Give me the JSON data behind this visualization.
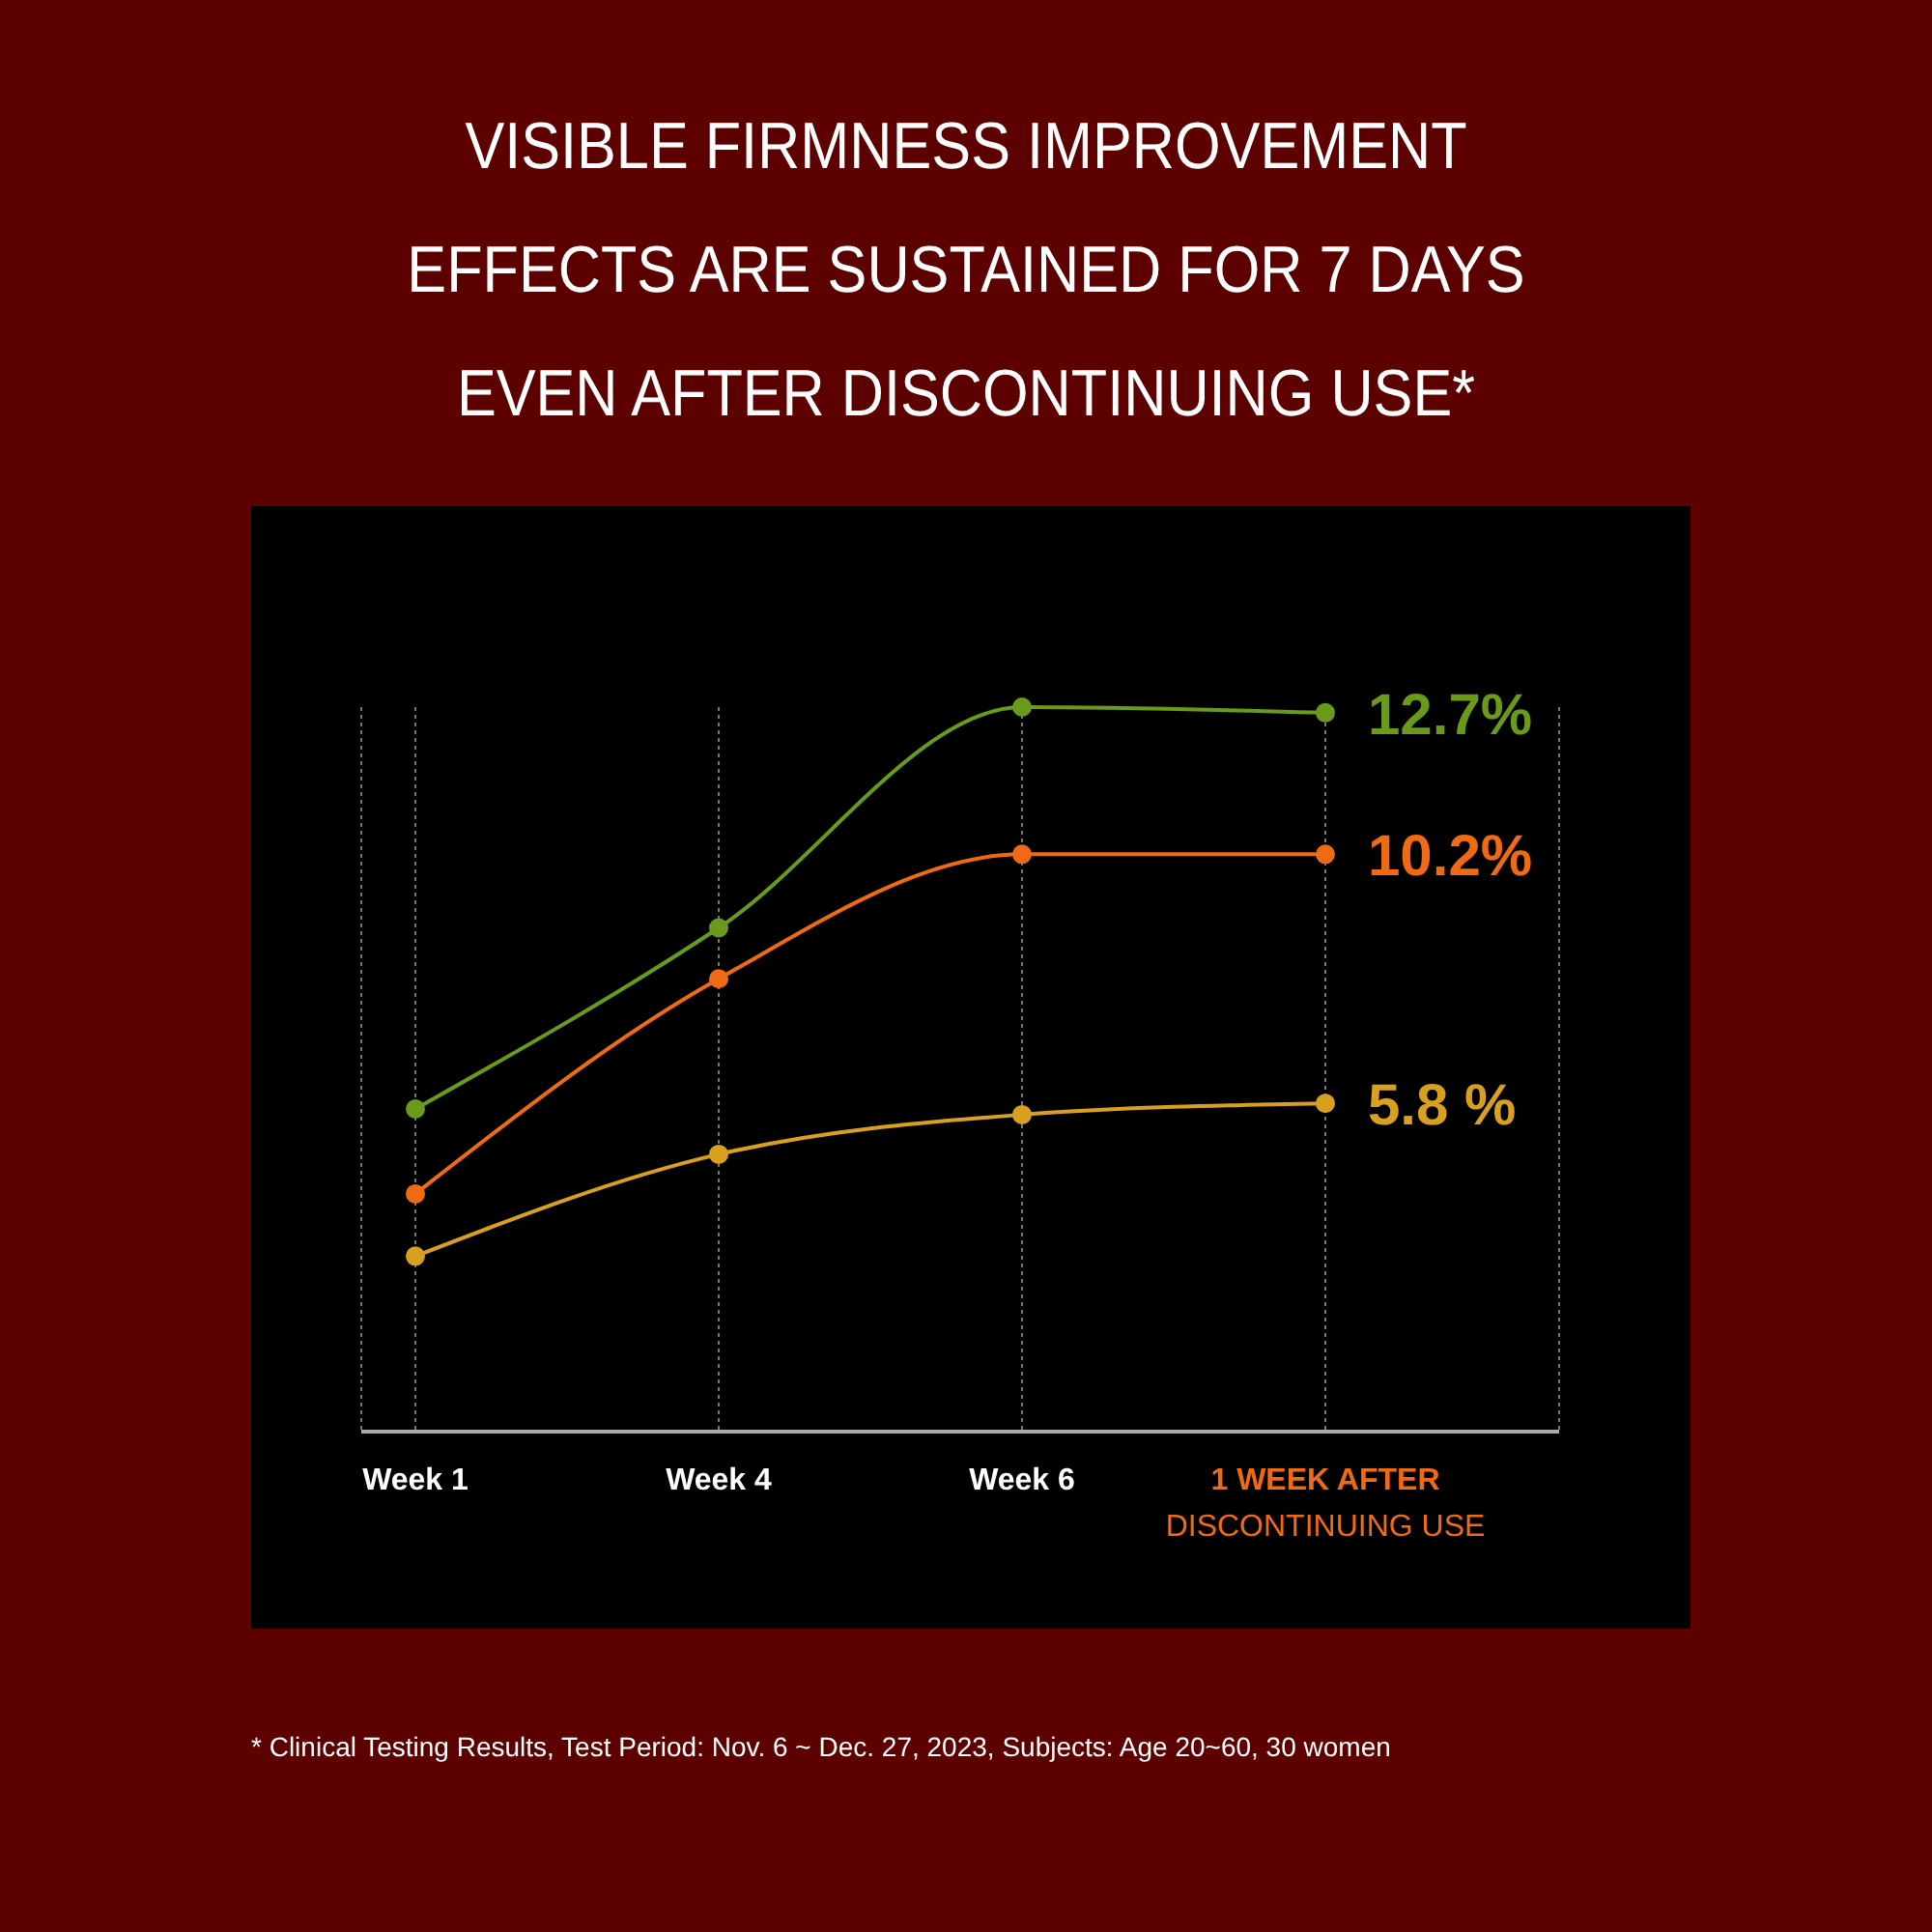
{
  "chart_data": {
    "type": "line",
    "title": "VISIBLE FIRMNESS IMPROVEMENT\nEFFECTS ARE SUSTAINED FOR 7 DAYS\nEVEN AFTER DISCONTINUING USE*",
    "categories": [
      "Week 1",
      "Week 4",
      "Week 6",
      "1 WEEK AFTER\nDISCONTINUING USE"
    ],
    "series": [
      {
        "color": "#6a9a1a",
        "values": [
          5.7,
          8.9,
          12.8,
          12.7
        ],
        "value_labels": [
          null,
          null,
          null,
          "12.7%"
        ]
      },
      {
        "color": "#f06a14",
        "values": [
          4.2,
          8.0,
          10.2,
          10.2
        ],
        "value_labels": [
          null,
          null,
          null,
          "10.2%"
        ]
      },
      {
        "color": "#d9a020",
        "values": [
          3.1,
          4.9,
          5.6,
          5.8
        ],
        "value_labels": [
          null,
          null,
          null,
          "5.8 %"
        ]
      }
    ],
    "grid": "x",
    "marker": "circle",
    "line_style": "solid",
    "annotations": [
      "* Clinical Testing Results, Test Period: Nov. 6 ~ Dec. 27, 2023, Subjects: Age 20~60, 30 women"
    ]
  }
}
